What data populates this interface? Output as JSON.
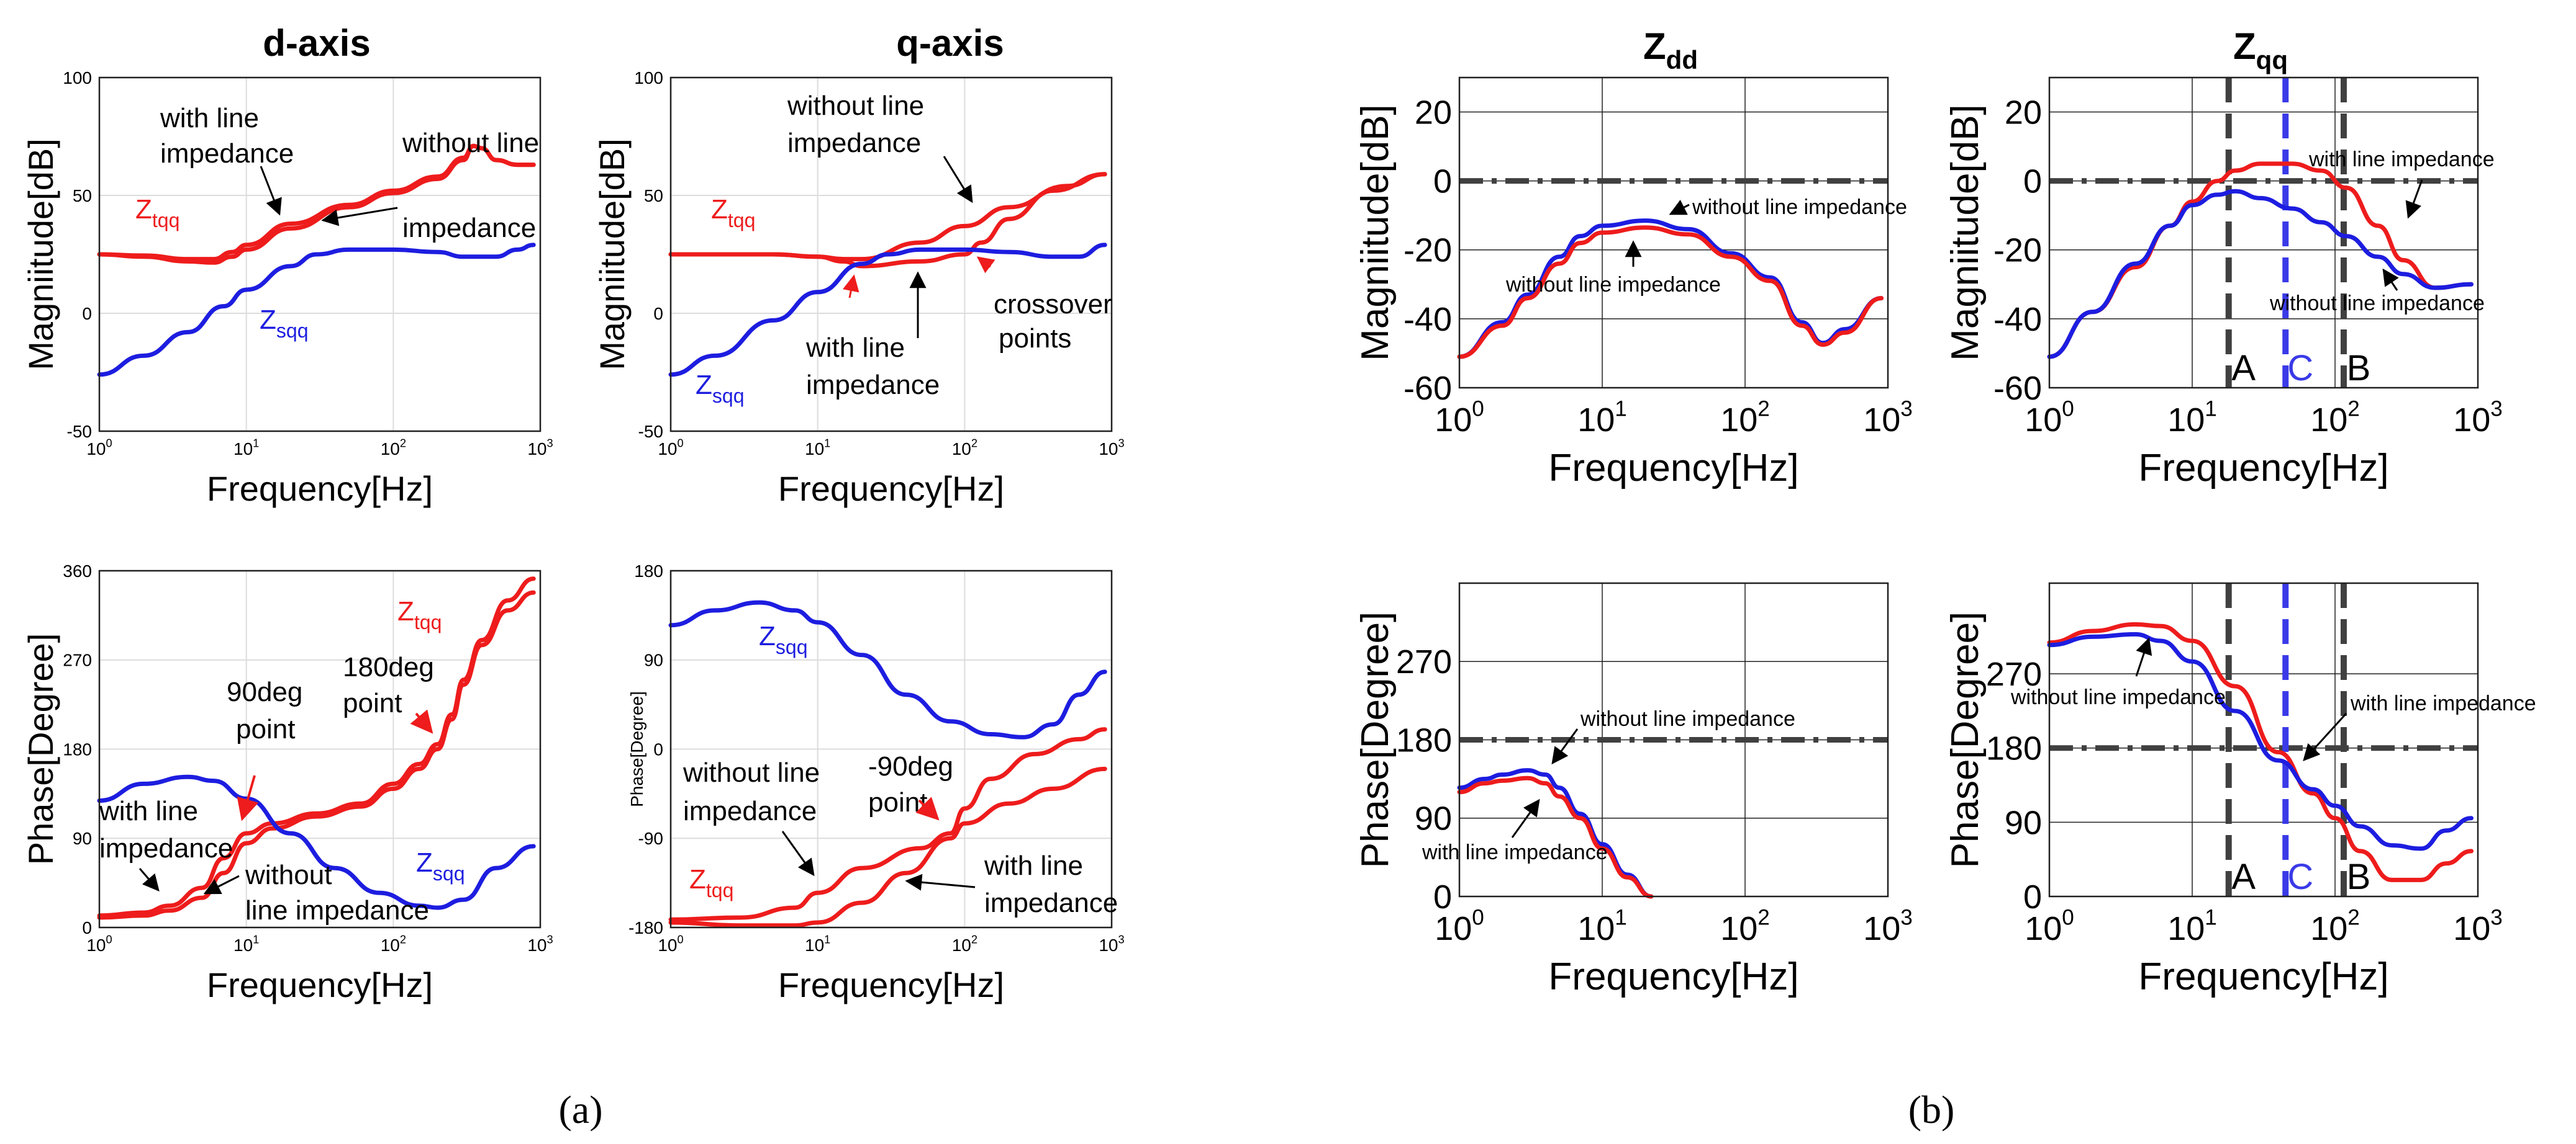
{
  "figure": {
    "label_a": "(a)",
    "label_b": "(b)"
  },
  "colors": {
    "red": "#ee1c1c",
    "blue": "#1d1de0",
    "dark": "#404040",
    "dashed_blue": "#3a3ae8",
    "grid": "#dcdcdc"
  },
  "chart_data": [
    {
      "id": "a-dq-mag",
      "type": "line",
      "title": "d-axis",
      "xlabel": "Frequency[Hz]",
      "ylabel": "Magniitude[dB]",
      "xscale": "log",
      "xlim": [
        1,
        1000
      ],
      "ylim": [
        -50,
        100
      ],
      "yticks": [
        -50,
        0,
        50,
        100
      ],
      "xticks": [
        1,
        10,
        100,
        1000
      ],
      "xticklabels": [
        "10^0",
        "10^1",
        "10^2",
        "10^3"
      ],
      "grid": true,
      "series": [
        {
          "name": "Ztqq",
          "color": "red",
          "x": [
            1,
            2,
            4,
            6,
            8,
            10,
            20,
            50,
            100,
            200,
            300,
            350,
            400,
            500,
            700,
            900
          ],
          "y": [
            25,
            24.5,
            23,
            23,
            26,
            29,
            38,
            46,
            52,
            58,
            66,
            71,
            70,
            65,
            63,
            63
          ]
        },
        {
          "name": "Ztqq",
          "color": "red",
          "x": [
            1,
            2,
            4,
            6,
            8,
            10,
            20,
            50,
            100,
            200,
            300,
            350,
            400,
            500,
            700,
            900
          ],
          "y": [
            25,
            24,
            22,
            21.5,
            24,
            27,
            36,
            45,
            51,
            57,
            65,
            71,
            70,
            65,
            63,
            63
          ]
        },
        {
          "name": "Zsqq",
          "color": "blue",
          "x": [
            1,
            2,
            4,
            7,
            10,
            20,
            30,
            50,
            100,
            200,
            300,
            500,
            700,
            900
          ],
          "y": [
            -26,
            -18,
            -8,
            3,
            10,
            20,
            25,
            27,
            27,
            26,
            24,
            24,
            27,
            29
          ]
        }
      ],
      "annotations": [
        "with line impedance",
        "without line impedance",
        "impedance"
      ]
    },
    {
      "id": "a-qq-mag",
      "type": "line",
      "title": "q-axis",
      "xlabel": "Frequency[Hz]",
      "ylabel": "Magniitude[dB]",
      "xscale": "log",
      "xlim": [
        1,
        1000
      ],
      "ylim": [
        -50,
        100
      ],
      "yticks": [
        -50,
        0,
        50,
        100
      ],
      "xticks": [
        1,
        10,
        100,
        1000
      ],
      "xticklabels": [
        "10^0",
        "10^1",
        "10^2",
        "10^3"
      ],
      "grid": true,
      "series": [
        {
          "name": "Ztqq",
          "color": "red",
          "x": [
            1,
            5,
            10,
            15,
            20,
            50,
            100,
            200,
            500,
            900
          ],
          "y": [
            25,
            25,
            24,
            23,
            23,
            30,
            37,
            45,
            54,
            59
          ]
        },
        {
          "name": "Ztqq",
          "color": "red",
          "x": [
            1,
            5,
            10,
            15,
            20,
            50,
            100,
            130,
            200,
            400,
            900
          ],
          "y": [
            25,
            25,
            24,
            22,
            20,
            22,
            25,
            30,
            40,
            52,
            59
          ]
        },
        {
          "name": "Zsqq",
          "color": "blue",
          "x": [
            1,
            2,
            5,
            10,
            20,
            30,
            50,
            100,
            200,
            400,
            600,
            900
          ],
          "y": [
            -26,
            -18,
            -3,
            9,
            21,
            25,
            27,
            27,
            26,
            24,
            24,
            29
          ]
        }
      ],
      "annotations": [
        "without line impedance",
        "with line impedance",
        "crossover points"
      ]
    },
    {
      "id": "a-dq-phase",
      "type": "line",
      "xlabel": "Frequency[Hz]",
      "ylabel": "Phase[Degree]",
      "xscale": "log",
      "xlim": [
        1,
        1000
      ],
      "ylim": [
        0,
        360
      ],
      "yticks": [
        0,
        90,
        180,
        270,
        360
      ],
      "xticks": [
        1,
        10,
        100,
        1000
      ],
      "xticklabels": [
        "10^0",
        "10^1",
        "10^2",
        "10^3"
      ],
      "grid": true,
      "series": [
        {
          "name": "Ztqq",
          "color": "red",
          "x": [
            1,
            2,
            3,
            5,
            7,
            10,
            15,
            30,
            60,
            100,
            150,
            200,
            250,
            300,
            400,
            600,
            900
          ],
          "y": [
            12,
            15,
            22,
            40,
            70,
            95,
            105,
            115,
            125,
            145,
            165,
            185,
            215,
            250,
            290,
            330,
            352
          ]
        },
        {
          "name": "Ztqq",
          "color": "red",
          "x": [
            1,
            2,
            3,
            5,
            7,
            10,
            15,
            30,
            60,
            100,
            150,
            200,
            250,
            300,
            400,
            600,
            900
          ],
          "y": [
            10,
            12,
            17,
            30,
            55,
            85,
            100,
            112,
            122,
            140,
            160,
            180,
            210,
            245,
            285,
            320,
            338
          ]
        },
        {
          "name": "Zsqq",
          "color": "blue",
          "x": [
            1,
            2,
            4,
            6,
            10,
            20,
            40,
            80,
            150,
            200,
            300,
            500,
            900
          ],
          "y": [
            128,
            145,
            152,
            148,
            130,
            95,
            60,
            35,
            22,
            20,
            28,
            60,
            82
          ]
        }
      ],
      "annotations": [
        "90deg point",
        "180deg point",
        "with line impedance",
        "without line impedance"
      ]
    },
    {
      "id": "a-qq-phase",
      "type": "line",
      "xlabel": "Frequency[Hz]",
      "ylabel": "Phase[Degree]",
      "xscale": "log",
      "xlim": [
        1,
        1000
      ],
      "ylim": [
        -180,
        180
      ],
      "yticks": [
        -180,
        -90,
        0,
        90,
        180
      ],
      "xticks": [
        1,
        10,
        100,
        1000
      ],
      "xticklabels": [
        "10^0",
        "10^1",
        "10^2",
        "10^3"
      ],
      "grid": true,
      "series": [
        {
          "name": "Ztqq",
          "color": "red",
          "x": [
            1,
            3,
            7,
            10,
            20,
            50,
            80,
            100,
            150,
            300,
            600,
            900
          ],
          "y": [
            -172,
            -170,
            -160,
            -145,
            -120,
            -100,
            -85,
            -60,
            -30,
            -5,
            10,
            20
          ]
        },
        {
          "name": "Ztqq",
          "color": "red",
          "x": [
            1,
            3,
            7,
            10,
            20,
            40,
            80,
            100,
            200,
            400,
            900
          ],
          "y": [
            -175,
            -178,
            -178,
            -175,
            -155,
            -125,
            -90,
            -75,
            -55,
            -40,
            -20
          ]
        },
        {
          "name": "Zsqq",
          "color": "blue",
          "x": [
            1,
            2,
            4,
            7,
            10,
            20,
            40,
            80,
            150,
            250,
            400,
            600,
            900
          ],
          "y": [
            125,
            140,
            148,
            140,
            128,
            95,
            55,
            28,
            15,
            12,
            25,
            55,
            78
          ]
        }
      ],
      "annotations": [
        "without line impedance",
        "-90deg point",
        "with line impedance"
      ]
    },
    {
      "id": "b-zdd-mag",
      "type": "line",
      "title": "Zdd",
      "xlabel": "Frequency[Hz]",
      "ylabel": "Magniitude[dB]",
      "xscale": "log",
      "xlim": [
        1,
        1000
      ],
      "ylim": [
        -60,
        30
      ],
      "yticks": [
        -60,
        -40,
        -20,
        0,
        20
      ],
      "xticks": [
        1,
        10,
        100,
        1000
      ],
      "xticklabels": [
        "10^0",
        "10^1",
        "10^2",
        "10^3"
      ],
      "grid": true,
      "reference_line": 0,
      "series": [
        {
          "name": "without line impedance",
          "color": "blue",
          "x": [
            1,
            2,
            3,
            5,
            7,
            10,
            20,
            40,
            80,
            150,
            250,
            350,
            500,
            900
          ],
          "y": [
            -51,
            -41,
            -33,
            -22,
            -16,
            -13,
            -11.5,
            -14,
            -21,
            -28,
            -41,
            -47,
            -43,
            -34
          ]
        },
        {
          "name": "with line impedance",
          "color": "red",
          "x": [
            1,
            2,
            3,
            5,
            7,
            10,
            20,
            40,
            80,
            150,
            250,
            350,
            500,
            900
          ],
          "y": [
            -51,
            -42,
            -34,
            -24,
            -18,
            -15,
            -13.5,
            -15.5,
            -22,
            -29,
            -42,
            -47.5,
            -44,
            -34
          ]
        }
      ],
      "annotations": [
        "without line impedance",
        "without line impedance"
      ]
    },
    {
      "id": "b-zqq-mag",
      "type": "line",
      "title": "Zqq",
      "xlabel": "Frequency[Hz]",
      "ylabel": "Magniitude[dB]",
      "xscale": "log",
      "xlim": [
        1,
        1000
      ],
      "ylim": [
        -60,
        30
      ],
      "yticks": [
        -60,
        -40,
        -20,
        0,
        20
      ],
      "xticks": [
        1,
        10,
        100,
        1000
      ],
      "xticklabels": [
        "10^0",
        "10^1",
        "10^2",
        "10^3"
      ],
      "grid": true,
      "reference_line": 0,
      "markers": [
        {
          "label": "A",
          "x": 18
        },
        {
          "label": "C",
          "x": 45
        },
        {
          "label": "B",
          "x": 115
        }
      ],
      "series": [
        {
          "name": "with line impedance",
          "color": "red",
          "x": [
            1,
            2,
            4,
            7,
            10,
            15,
            20,
            30,
            50,
            80,
            120,
            200,
            300,
            500,
            900
          ],
          "y": [
            -51,
            -38,
            -25,
            -13,
            -6,
            0,
            3,
            5,
            5,
            3,
            -2,
            -13,
            -23,
            -31,
            -30
          ]
        },
        {
          "name": "without line impedance",
          "color": "blue",
          "x": [
            1,
            2,
            4,
            7,
            10,
            15,
            20,
            30,
            50,
            80,
            120,
            200,
            300,
            500,
            900
          ],
          "y": [
            -51,
            -38,
            -24,
            -13,
            -7,
            -4,
            -3,
            -5,
            -8,
            -12,
            -16,
            -22,
            -27,
            -31,
            -30
          ]
        }
      ],
      "annotations": [
        "with line impedance",
        "without line impedance"
      ]
    },
    {
      "id": "b-zdd-phase",
      "type": "line",
      "xlabel": "Frequency[Hz]",
      "ylabel": "Phase[Degree]",
      "xscale": "log",
      "xlim": [
        1,
        1000
      ],
      "ylim": [
        0,
        360
      ],
      "yticks": [
        0,
        90,
        180,
        270
      ],
      "xticks": [
        1,
        10,
        100,
        1000
      ],
      "xticklabels": [
        "10^0",
        "10^1",
        "10^2",
        "10^3"
      ],
      "grid": true,
      "reference_line": 180,
      "series": [
        {
          "name": "without line impedance",
          "color": "blue",
          "x": [
            1,
            1.5,
            2,
            3,
            4,
            5,
            7,
            10,
            15,
            22
          ],
          "y": [
            125,
            135,
            140,
            145,
            140,
            125,
            95,
            60,
            25,
            0
          ]
        },
        {
          "name": "with line impedance",
          "color": "red",
          "x": [
            1,
            1.5,
            2,
            3,
            4,
            5,
            7,
            10,
            15,
            22
          ],
          "y": [
            120,
            130,
            133,
            136,
            130,
            115,
            90,
            55,
            22,
            0
          ]
        }
      ],
      "annotations": [
        "without line impedance",
        "with line impedance"
      ]
    },
    {
      "id": "b-zqq-phase",
      "type": "line",
      "xlabel": "Frequency[Hz]",
      "ylabel": "Phase[Degree]",
      "xscale": "log",
      "xlim": [
        1,
        1000
      ],
      "ylim": [
        0,
        380
      ],
      "yticks": [
        0,
        90,
        180,
        270
      ],
      "xticks": [
        1,
        10,
        100,
        1000
      ],
      "xticklabels": [
        "10^0",
        "10^1",
        "10^2",
        "10^3"
      ],
      "grid": true,
      "reference_line": 180,
      "markers": [
        {
          "label": "A",
          "x": 18
        },
        {
          "label": "C",
          "x": 45
        },
        {
          "label": "B",
          "x": 115
        }
      ],
      "series": [
        {
          "name": "with line impedance",
          "color": "red",
          "x": [
            1,
            2,
            4,
            6,
            10,
            20,
            40,
            70,
            100,
            150,
            250,
            400,
            600,
            900
          ],
          "y": [
            308,
            322,
            330,
            328,
            310,
            255,
            175,
            125,
            95,
            55,
            20,
            20,
            40,
            55
          ]
        },
        {
          "name": "without line impedance",
          "color": "blue",
          "x": [
            1,
            2,
            4,
            6,
            10,
            20,
            40,
            70,
            100,
            150,
            250,
            400,
            600,
            900
          ],
          "y": [
            305,
            315,
            318,
            310,
            285,
            225,
            165,
            130,
            110,
            85,
            62,
            58,
            80,
            95
          ]
        }
      ],
      "annotations": [
        "without line impedance",
        "with line impedance"
      ]
    }
  ],
  "panels": {
    "a_mag_d": {
      "title": "d-axis",
      "xlabel": "Frequency[Hz]",
      "ylabel": "Magniitude[dB]",
      "ztqq": "Z",
      "ztqq_sub": "tqq",
      "zsqq": "Z",
      "zsqq_sub": "sqq",
      "ann1": "with line",
      "ann2": "impedance",
      "ann3": "without line",
      "ann4": "impedance"
    },
    "a_mag_q": {
      "title": "q-axis",
      "xlabel": "Frequency[Hz]",
      "ylabel": "Magniitude[dB]",
      "ztqq": "Z",
      "ztqq_sub": "tqq",
      "zsqq": "Z",
      "zsqq_sub": "sqq",
      "ann1": "without line",
      "ann2": "impedance",
      "ann3": "with line",
      "ann4": "impedance",
      "ann5": "crossover",
      "ann6": "points"
    },
    "a_ph_d": {
      "xlabel": "Frequency[Hz]",
      "ylabel": "Phase[Degree]",
      "ztqq": "Z",
      "ztqq_sub": "tqq",
      "zsqq": "Z",
      "zsqq_sub": "sqq",
      "ann1": "90deg",
      "ann2": "point",
      "ann3": "180deg",
      "ann4": "point",
      "ann5": "with line",
      "ann6": "impedance",
      "ann7": "without",
      "ann8": "line impedance"
    },
    "a_ph_q": {
      "xlabel": "Frequency[Hz]",
      "ylabel": "Phase[Degree]",
      "ztqq": "Z",
      "ztqq_sub": "tqq",
      "zsqq": "Z",
      "zsqq_sub": "sqq",
      "ann1": "without line",
      "ann2": "impedance",
      "ann3": "-90deg",
      "ann4": "point",
      "ann5": "with line",
      "ann6": "impedance"
    },
    "b_mag_d": {
      "title": "Z",
      "title_sub": "dd",
      "xlabel": "Frequency[Hz]",
      "ylabel": "Magniitude[dB]",
      "ann1": "without line impedance",
      "ann2": "without line impedance"
    },
    "b_mag_q": {
      "title": "Z",
      "title_sub": "qq",
      "xlabel": "Frequency[Hz]",
      "ylabel": "Magniitude[dB]",
      "ann1": "with line impedance",
      "ann2": "without line impedance",
      "mA": "A",
      "mC": "C",
      "mB": "B"
    },
    "b_ph_d": {
      "xlabel": "Frequency[Hz]",
      "ylabel": "Phase[Degree]",
      "ann1": "without line impedance",
      "ann2": "with line impedance"
    },
    "b_ph_q": {
      "xlabel": "Frequency[Hz]",
      "ylabel": "Phase[Degree]",
      "ann1": "without line impedance",
      "ann2": "with line impedance",
      "mA": "A",
      "mC": "C",
      "mB": "B"
    }
  }
}
